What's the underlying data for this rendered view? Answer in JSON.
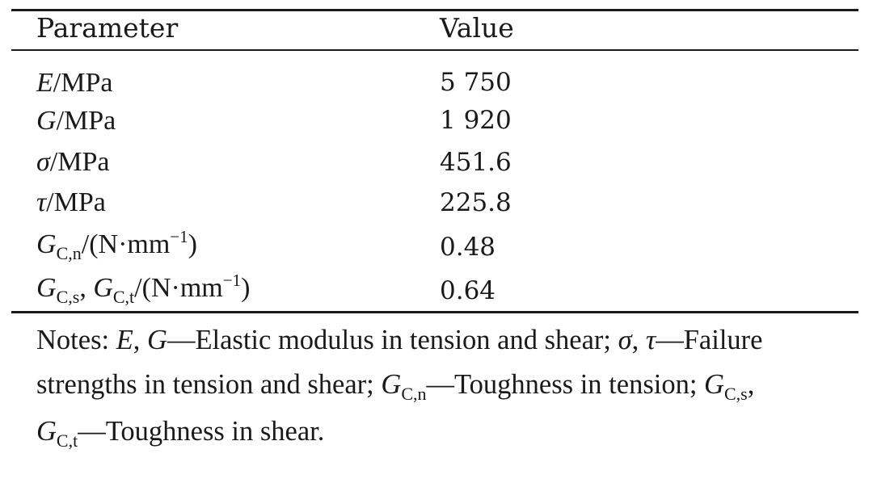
{
  "table": {
    "headers": [
      "Parameter",
      "Value"
    ],
    "rows": [
      {
        "symbol": "E",
        "unit": "/MPa",
        "value": "5 750"
      },
      {
        "symbol": "G",
        "unit": "/MPa",
        "value": "1 920"
      },
      {
        "symbol": "σ",
        "unit": "/MPa",
        "value": "451.6"
      },
      {
        "symbol": "τ",
        "unit": "/MPa",
        "value": "225.8"
      },
      {
        "symbol": "G",
        "subscript": "C,n",
        "unit": "/(N·mm",
        "superscript": "−1",
        "unit_close": ")",
        "value": "0.48"
      },
      {
        "symbol": "G",
        "subscript": "C,s",
        "separator": ", ",
        "symbol2": "G",
        "subscript2": "C,t",
        "unit": "/(N·mm",
        "superscript": "−1",
        "unit_close": ")",
        "value": "0.64"
      }
    ]
  },
  "notes": {
    "prefix": "Notes: ",
    "e_sym": "E",
    "comma1": ", ",
    "g_sym": "G",
    "e_desc": "—Elastic modulus in tension and shear; ",
    "sigma_sym": "σ",
    "comma2": ", ",
    "tau_sym": "τ",
    "fail_desc_line1": "—Failure",
    "fail_desc_line2": "strengths in tension and shear; ",
    "gcn_sym": "G",
    "gcn_sub": "C,n",
    "gcn_desc": "—Toughness in tension; ",
    "gcs_sym": "G",
    "gcs_sub": "C,s",
    "comma3": ",",
    "gct_sym": "G",
    "gct_sub": "C,t",
    "gct_desc": "—Toughness in shear."
  }
}
